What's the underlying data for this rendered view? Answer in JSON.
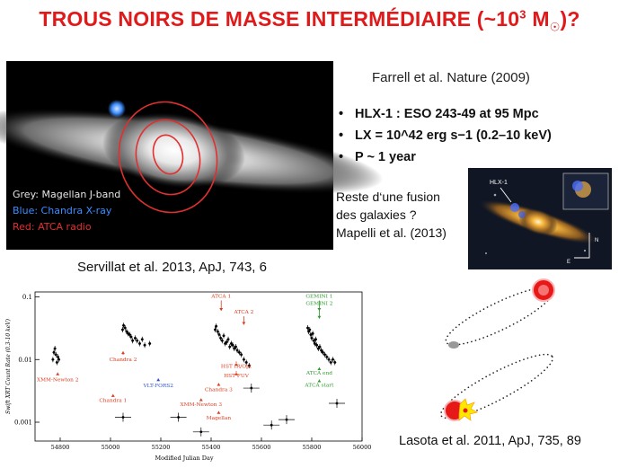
{
  "slide": {
    "title_main": "TROUS NOIRS DE MASSE INTERMÉDIAIRE (~10",
    "title_exp": "3",
    "title_unit": " M",
    "title_sun": "☉",
    "title_end": ")?"
  },
  "galaxy_image": {
    "legend": [
      "Grey: Magellan J-band",
      "Blue: Chandra X-ray",
      "Red: ATCA radio"
    ],
    "legend_colors": [
      "#e6e6e6",
      "#3d8cff",
      "#e03030"
    ]
  },
  "reference": "Farrell et al. Nature (2009)",
  "bullets": [
    {
      "marker": "•",
      "text": "HLX-1 :   ESO 243-49 at 95 Mpc"
    },
    {
      "marker": "•",
      "text": "LX = 10^42 erg s−1 (0.2–10 keV)"
    },
    {
      "marker": "•",
      "text": "P ~ 1 year"
    }
  ],
  "merger_note": [
    "Reste d‘une fusion",
    "des galaxies ?",
    "Mapelli et al. (2013)"
  ],
  "hlx_image": {
    "label": "HLX-1",
    "compass_n": "N",
    "compass_e": "E"
  },
  "lightcurve": {
    "reference": "Servillat et al. 2013, ApJ, 743, 6",
    "xlabel": "Modified Julian Day",
    "ylabel": "Swift XRT Count Rate (0.3-10 keV)",
    "xticks": [
      "54800",
      "55000",
      "55200",
      "55400",
      "55600",
      "55800",
      "56000"
    ],
    "yticks": [
      "0.1",
      "0.01",
      "0.001"
    ],
    "annotations": [
      {
        "text": "XMM-Newton 2",
        "color": "#d83a1e"
      },
      {
        "text": "Chandra 2",
        "color": "#d83a1e"
      },
      {
        "text": "Chandra 1",
        "color": "#d83a1e"
      },
      {
        "text": "VLT-FORS2",
        "color": "#2a4fcf"
      },
      {
        "text": "XMM-Newton 3",
        "color": "#d83a1e"
      },
      {
        "text": "ATCA 1",
        "color": "#d83a1e"
      },
      {
        "text": "ATCA 2",
        "color": "#d83a1e"
      },
      {
        "text": "HST IR/Opt",
        "color": "#d83a1e"
      },
      {
        "text": "HST FUV",
        "color": "#d83a1e"
      },
      {
        "text": "Chandra 3",
        "color": "#d83a1e"
      },
      {
        "text": "Magellan",
        "color": "#d83a1e"
      },
      {
        "text": "GEMINI 1",
        "color": "#2e9a2e"
      },
      {
        "text": "GEMINI 2",
        "color": "#2e9a2e"
      },
      {
        "text": "ATCA end",
        "color": "#2e9a2e"
      },
      {
        "text": "ATCA start",
        "color": "#2e9a2e"
      }
    ]
  },
  "chart_data": {
    "type": "scatter",
    "title": "",
    "xlabel": "Modified Julian Day",
    "ylabel": "Swift XRT Count Rate (0.3-10 keV)",
    "xlim": [
      54700,
      56000
    ],
    "ylim": [
      0.0005,
      0.12
    ],
    "yscale": "log",
    "series": [
      {
        "x": [
          54771,
          54775,
          54779,
          54783,
          54787,
          54791,
          54795,
          55048,
          55052,
          55058,
          55064,
          55070,
          55076,
          55082,
          55088,
          55098,
          55106,
          55116,
          55126,
          55136,
          55156,
          55050,
          55270,
          55360,
          55416,
          55420,
          55426,
          55432,
          55438,
          55444,
          55450,
          55456,
          55462,
          55468,
          55474,
          55480,
          55486,
          55492,
          55498,
          55504,
          55512,
          55520,
          55530,
          55540,
          55551,
          55560,
          55784,
          55788,
          55792,
          55796,
          55800,
          55804,
          55808,
          55812,
          55816,
          55820,
          55826,
          55832,
          55838,
          55844,
          55852,
          55860,
          55868,
          55876,
          55884,
          55892,
          55700,
          55640,
          55900
        ],
        "y": [
          0.01,
          0.013,
          0.015,
          0.012,
          0.009,
          0.011,
          0.01,
          0.03,
          0.035,
          0.032,
          0.028,
          0.026,
          0.025,
          0.023,
          0.02,
          0.022,
          0.02,
          0.018,
          0.021,
          0.017,
          0.018,
          0.0012,
          0.0012,
          0.0007,
          0.03,
          0.034,
          0.028,
          0.025,
          0.022,
          0.02,
          0.024,
          0.018,
          0.019,
          0.021,
          0.016,
          0.018,
          0.017,
          0.015,
          0.016,
          0.014,
          0.013,
          0.012,
          0.01,
          0.009,
          0.008,
          0.0035,
          0.032,
          0.028,
          0.03,
          0.025,
          0.022,
          0.026,
          0.02,
          0.018,
          0.021,
          0.017,
          0.015,
          0.016,
          0.014,
          0.013,
          0.012,
          0.011,
          0.01,
          0.009,
          0.01,
          0.009,
          0.0011,
          0.0009,
          0.002
        ]
      }
    ]
  },
  "orbit_ref": "Lasota et al. 2011, ApJ, 735, 89"
}
